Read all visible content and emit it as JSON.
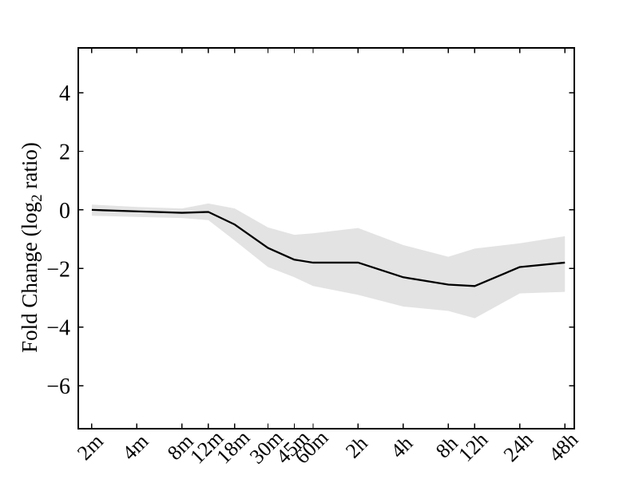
{
  "figure": {
    "background": "#ffffff"
  },
  "chart_data": {
    "type": "line",
    "title": "",
    "xlabel": "",
    "ylabel": "Fold Change (log₂ ratio)",
    "ylabel_parts": {
      "pre": "Fold Change (log",
      "sub": "2",
      "post": " ratio)"
    },
    "categories": [
      "2m",
      "4m",
      "8m",
      "12m",
      "18m",
      "30m",
      "45m",
      "60m",
      "2h",
      "4h",
      "8h",
      "12h",
      "24h",
      "48h"
    ],
    "x_minutes": [
      2,
      4,
      8,
      12,
      18,
      30,
      45,
      60,
      120,
      240,
      480,
      720,
      1440,
      2880
    ],
    "x_scale": "log2",
    "series": [
      {
        "name": "mean",
        "values": [
          0.0,
          -0.05,
          -0.1,
          -0.07,
          -0.5,
          -1.3,
          -1.7,
          -1.8,
          -1.8,
          -2.3,
          -2.55,
          -2.6,
          -1.95,
          -1.8
        ]
      },
      {
        "name": "band_upper",
        "values": [
          0.18,
          0.1,
          0.05,
          0.22,
          0.05,
          -0.6,
          -0.85,
          -0.8,
          -0.62,
          -1.2,
          -1.6,
          -1.32,
          -1.14,
          -0.9
        ]
      },
      {
        "name": "band_lower",
        "values": [
          -0.2,
          -0.24,
          -0.28,
          -0.35,
          -1.05,
          -1.95,
          -2.3,
          -2.6,
          -2.9,
          -3.3,
          -3.45,
          -3.7,
          -2.85,
          -2.8
        ]
      }
    ],
    "ytick_values": [
      4,
      2,
      0,
      -2,
      -4,
      -6
    ],
    "ytick_labels": [
      "4",
      "2",
      "0",
      "−2",
      "−4",
      "−6"
    ],
    "ylim": [
      -7.47,
      5.53
    ],
    "xlim_log2": [
      0.7,
      11.7
    ],
    "grid": false,
    "legend": "none",
    "band_style": "filled confidence band",
    "colors": {
      "line": "#000000",
      "band": "#e3e3e3",
      "axis": "#000000",
      "background": "#ffffff"
    }
  }
}
